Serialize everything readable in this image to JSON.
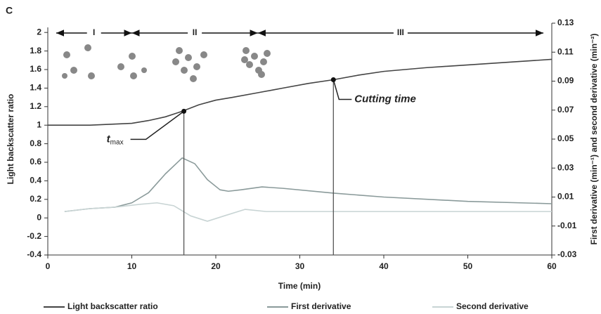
{
  "chart_data": {
    "type": "line",
    "panel_label": "C",
    "x_label": "Time (min)",
    "y_label": "Light backscatter ratio",
    "y2_label": "First derivative (min⁻¹) and second derivative (min⁻²)",
    "xlim": [
      0,
      60
    ],
    "xticks": [
      0,
      10,
      20,
      30,
      40,
      50,
      60
    ],
    "ylim": [
      -0.4,
      2.1
    ],
    "yticks": [
      -0.4,
      -0.2,
      0,
      0.2,
      0.4,
      0.6,
      0.8,
      1,
      1.2,
      1.4,
      1.6,
      1.8,
      2
    ],
    "y2lim": [
      -0.03,
      0.13
    ],
    "y2ticks": [
      -0.03,
      -0.01,
      0.01,
      0.03,
      0.05,
      0.07,
      0.09,
      0.11,
      0.13
    ],
    "series": [
      {
        "name": "Light backscatter ratio",
        "color": "#444444",
        "x": [
          0,
          5,
          10,
          12,
          14,
          16,
          18,
          20,
          22,
          25,
          28,
          31,
          34,
          37,
          40,
          45,
          50,
          55,
          60
        ],
        "values": [
          1.0,
          1.0,
          1.02,
          1.05,
          1.09,
          1.15,
          1.22,
          1.27,
          1.3,
          1.35,
          1.4,
          1.45,
          1.49,
          1.54,
          1.58,
          1.62,
          1.65,
          1.68,
          1.71
        ]
      },
      {
        "name": "First derivative",
        "color": "#8a9a9a",
        "axis": "y2",
        "x": [
          2,
          5,
          8,
          10,
          12,
          14,
          16,
          17.5,
          19,
          20.5,
          21.5,
          23,
          25.5,
          28,
          34,
          40,
          50,
          60
        ],
        "values": [
          0.0,
          0.002,
          0.003,
          0.006,
          0.013,
          0.026,
          0.037,
          0.033,
          0.022,
          0.015,
          0.014,
          0.015,
          0.017,
          0.016,
          0.0127,
          0.01,
          0.007,
          0.0054
        ]
      },
      {
        "name": "Second derivative",
        "color": "#c8d4d4",
        "axis": "y2",
        "x": [
          2,
          5,
          8,
          11,
          13,
          15,
          17,
          19,
          21,
          23.5,
          26,
          30,
          40,
          50,
          60
        ],
        "values": [
          0.0,
          0.002,
          0.003,
          0.005,
          0.006,
          0.004,
          -0.003,
          -0.0067,
          -0.003,
          0.0015,
          0.0,
          0.0,
          0.0,
          0.0,
          0.0
        ]
      }
    ],
    "annotations": [
      {
        "text": "t",
        "subscript": "max",
        "x": 16.2,
        "y": 1.15
      },
      {
        "text": "Cutting time",
        "x": 34,
        "y": 1.49
      }
    ],
    "regions": [
      {
        "label": "I",
        "start": 1,
        "end": 10
      },
      {
        "label": "II",
        "start": 10,
        "end": 25
      },
      {
        "label": "III",
        "start": 25,
        "end": 59
      }
    ],
    "legend": "bottom"
  }
}
